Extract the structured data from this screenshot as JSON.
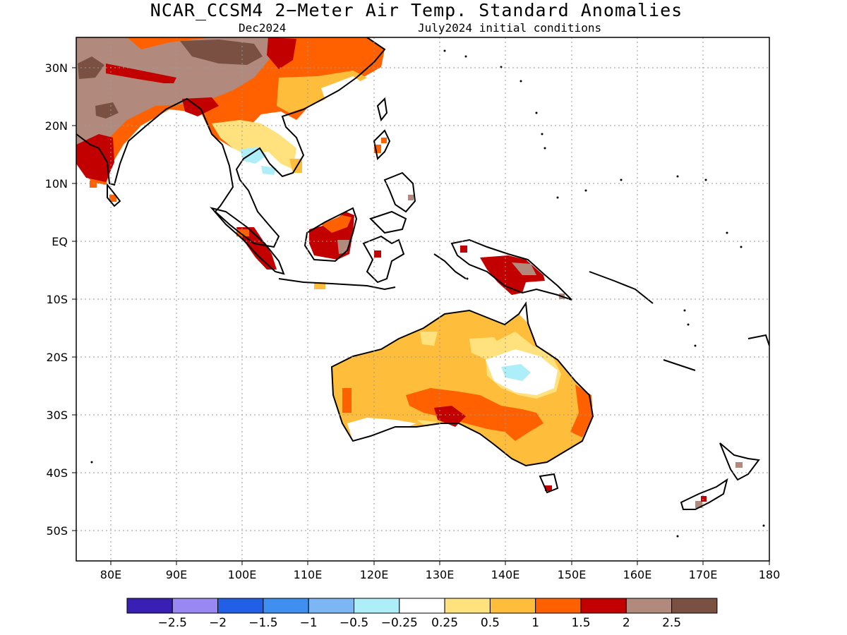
{
  "title": "NCAR_CCSM4 2−Meter Air Temp. Standard Anomalies",
  "subtitle_left": "Dec2024",
  "subtitle_right": "July2024 initial conditions",
  "lat_labels": [
    "30N",
    "20N",
    "10N",
    "EQ",
    "10S",
    "20S",
    "30S",
    "40S",
    "50S"
  ],
  "lon_labels": [
    "80E",
    "90E",
    "100E",
    "110E",
    "120E",
    "130E",
    "140E",
    "150E",
    "160E",
    "170E",
    "180"
  ],
  "colorbar": {
    "colors": [
      "#3a1fb4",
      "#9a88f2",
      "#2160e6",
      "#3e8ff0",
      "#7cb6f5",
      "#aeeef8",
      "#ffffff",
      "#ffe27e",
      "#ffbd3c",
      "#ff6100",
      "#c30000",
      "#b18a7d",
      "#7a5043"
    ],
    "labels": [
      "−2.5",
      "−2",
      "−1.5",
      "−1",
      "−0.5",
      "−0.25",
      "0.25",
      "0.5",
      "1",
      "1.5",
      "2",
      "2.5"
    ]
  }
}
